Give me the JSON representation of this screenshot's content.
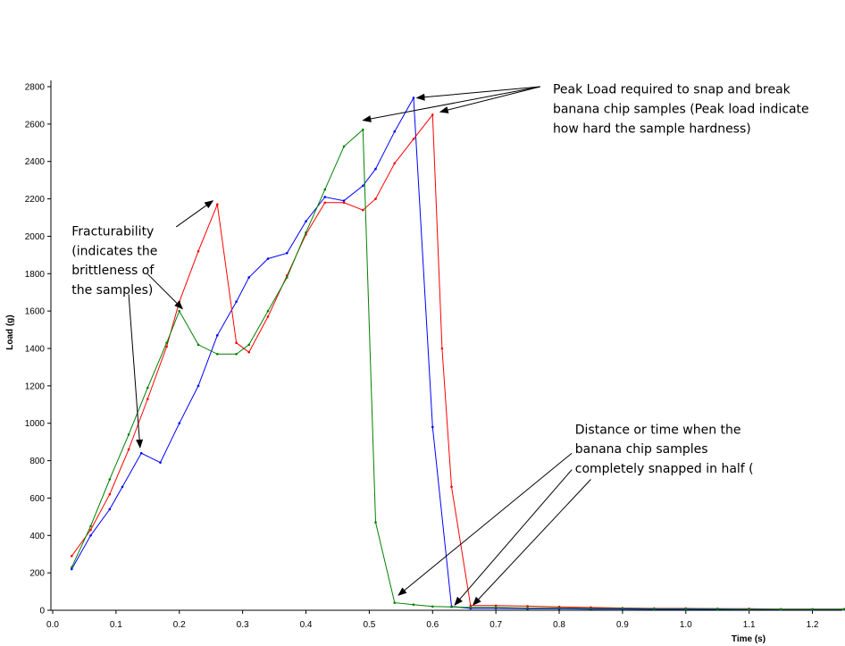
{
  "chart_data": {
    "type": "line",
    "xlabel": "Time (s)",
    "ylabel": "Load (g)",
    "xlim": [
      0,
      1.25
    ],
    "ylim": [
      0,
      2850
    ],
    "xticks": [
      "0.0",
      "0.1",
      "0.2",
      "0.3",
      "0.4",
      "0.5",
      "0.6",
      "0.7",
      "0.8",
      "0.9",
      "1.0",
      "1.1",
      "1.2"
    ],
    "yticks": [
      "0",
      "200",
      "400",
      "600",
      "800",
      "1000",
      "1200",
      "1400",
      "1600",
      "1800",
      "2000",
      "2200",
      "2400",
      "2600",
      "2800"
    ],
    "grid": false,
    "series": [
      {
        "color": "#0000ff",
        "x": [
          0.03,
          0.06,
          0.09,
          0.11,
          0.14,
          0.17,
          0.2,
          0.23,
          0.26,
          0.29,
          0.31,
          0.34,
          0.37,
          0.4,
          0.43,
          0.46,
          0.49,
          0.51,
          0.54,
          0.57,
          0.6,
          0.63,
          0.66,
          0.7,
          0.75,
          0.8,
          0.85,
          0.9,
          0.95,
          1.0,
          1.05,
          1.1,
          1.15,
          1.2,
          1.25
        ],
        "y": [
          220,
          400,
          540,
          660,
          840,
          790,
          1000,
          1200,
          1470,
          1650,
          1780,
          1880,
          1910,
          2080,
          2210,
          2190,
          2270,
          2360,
          2560,
          2740,
          980,
          20,
          10,
          10,
          8,
          8,
          6,
          6,
          5,
          5,
          5,
          4,
          4,
          4,
          4
        ]
      },
      {
        "color": "#ff0000",
        "x": [
          0.03,
          0.06,
          0.09,
          0.12,
          0.15,
          0.18,
          0.2,
          0.23,
          0.26,
          0.29,
          0.31,
          0.34,
          0.37,
          0.4,
          0.43,
          0.46,
          0.49,
          0.51,
          0.54,
          0.57,
          0.6,
          0.615,
          0.63,
          0.66,
          0.7,
          0.75,
          0.8,
          0.85,
          0.9,
          0.95,
          1.0,
          1.05,
          1.1,
          1.15,
          1.2,
          1.25
        ],
        "y": [
          290,
          430,
          620,
          860,
          1130,
          1410,
          1650,
          1920,
          2170,
          1430,
          1380,
          1570,
          1790,
          2010,
          2180,
          2180,
          2140,
          2200,
          2390,
          2520,
          2650,
          1400,
          660,
          25,
          25,
          22,
          18,
          15,
          12,
          10,
          10,
          8,
          8,
          6,
          6,
          6
        ]
      },
      {
        "color": "#008000",
        "x": [
          0.03,
          0.06,
          0.09,
          0.12,
          0.15,
          0.18,
          0.2,
          0.23,
          0.26,
          0.29,
          0.31,
          0.34,
          0.37,
          0.4,
          0.43,
          0.46,
          0.49,
          0.51,
          0.54,
          0.57,
          0.6,
          0.63,
          0.66,
          0.7,
          0.75,
          0.8,
          0.85,
          0.9,
          0.95,
          1.0,
          1.05,
          1.1,
          1.15,
          1.2,
          1.25
        ],
        "y": [
          230,
          450,
          700,
          940,
          1190,
          1430,
          1600,
          1420,
          1370,
          1370,
          1420,
          1600,
          1780,
          2020,
          2250,
          2480,
          2570,
          470,
          40,
          30,
          20,
          18,
          15,
          15,
          12,
          12,
          10,
          10,
          8,
          8,
          8,
          6,
          6,
          6,
          6
        ]
      }
    ],
    "annotations": [
      {
        "lines": [
          "Peak Load required to snap and break",
          "banana chip samples (Peak load indicate",
          "how hard the sample hardness)"
        ],
        "text_at": [
          0.79,
          2763
        ],
        "line_step": 104,
        "source": [
          0.77,
          2800
        ],
        "arrows_to": [
          [
            0.49,
            2620
          ],
          [
            0.575,
            2740
          ],
          [
            0.612,
            2665
          ]
        ]
      },
      {
        "lines": [
          "Fracturability",
          "(indicates the",
          "brittleness of",
          "the samples)"
        ],
        "text_at": [
          0.03,
          2004
        ],
        "line_step": 104,
        "sources": [
          [
            0.195,
            2050
          ],
          [
            0.15,
            1798
          ],
          [
            0.12,
            1690
          ]
        ],
        "arrows_to": [
          [
            0.253,
            2190
          ],
          [
            0.205,
            1612
          ],
          [
            0.138,
            870
          ]
        ]
      },
      {
        "lines": [
          "Distance or time when the",
          "banana chip samples",
          "completely snapped in half ("
        ],
        "text_at": [
          0.825,
          944
        ],
        "line_step": 104,
        "sources": [
          [
            0.82,
            840
          ],
          [
            0.82,
            752
          ],
          [
            0.85,
            700
          ]
        ],
        "arrows_to": [
          [
            0.546,
            80
          ],
          [
            0.635,
            28
          ],
          [
            0.664,
            28
          ]
        ]
      }
    ]
  }
}
